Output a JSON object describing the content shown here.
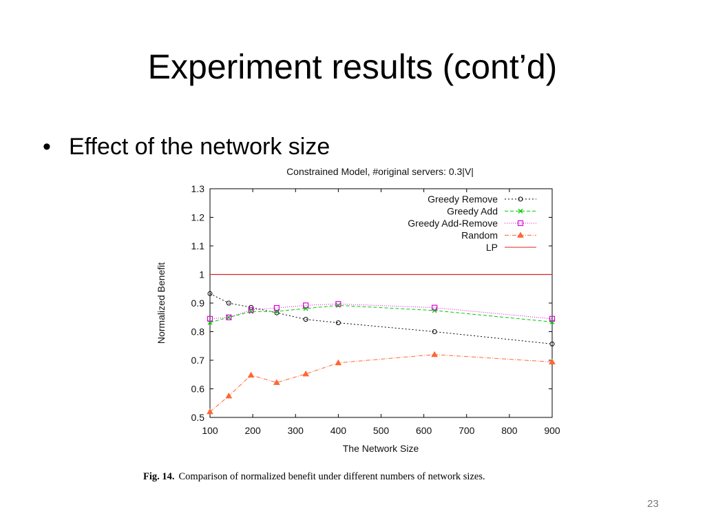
{
  "slide": {
    "title": "Experiment results (cont’d)",
    "bullet": "Effect of the network size",
    "page_number": "23"
  },
  "figure": {
    "caption_label": "Fig. 14.",
    "caption_text": "Comparison of normalized benefit under different numbers of network sizes."
  },
  "chart_data": {
    "type": "line",
    "title": "Constrained Model, #original servers: 0.3|V|",
    "xlabel": "The Network Size",
    "ylabel": "Normalized Benefit",
    "xlim": [
      100,
      900
    ],
    "ylim": [
      0.5,
      1.3
    ],
    "xticks": [
      100,
      200,
      300,
      400,
      500,
      600,
      700,
      800,
      900
    ],
    "yticks": [
      0.5,
      0.6,
      0.7,
      0.8,
      0.9,
      1,
      1.1,
      1.2,
      1.3
    ],
    "grid": false,
    "legend_position": "top-right",
    "series": [
      {
        "name": "Greedy Remove",
        "color": "#000000",
        "marker": "circle",
        "dash": "2,3",
        "x": [
          100,
          144,
          196,
          256,
          324,
          400,
          625,
          900
        ],
        "y": [
          0.933,
          0.9,
          0.885,
          0.866,
          0.843,
          0.831,
          0.8,
          0.757
        ]
      },
      {
        "name": "Greedy Add",
        "color": "#00cc00",
        "marker": "x",
        "dash": "5,3",
        "x": [
          100,
          144,
          196,
          256,
          324,
          400,
          625,
          900
        ],
        "y": [
          0.832,
          0.85,
          0.87,
          0.871,
          0.881,
          0.892,
          0.874,
          0.834
        ]
      },
      {
        "name": "Greedy Add-Remove",
        "color": "#dd00dd",
        "marker": "square",
        "dash": "1,2",
        "x": [
          100,
          144,
          196,
          256,
          324,
          400,
          625,
          900
        ],
        "y": [
          0.845,
          0.85,
          0.876,
          0.883,
          0.892,
          0.897,
          0.884,
          0.845
        ]
      },
      {
        "name": "Random",
        "color": "#ff6633",
        "marker": "triangle",
        "dash": "6,2,1,2",
        "x": [
          100,
          144,
          196,
          256,
          324,
          400,
          625,
          900
        ],
        "y": [
          0.52,
          0.575,
          0.648,
          0.622,
          0.652,
          0.691,
          0.72,
          0.694
        ]
      },
      {
        "name": "LP",
        "color": "#dd2222",
        "marker": "none",
        "dash": "",
        "x": [
          100,
          900
        ],
        "y": [
          1.0,
          1.0
        ]
      }
    ]
  }
}
